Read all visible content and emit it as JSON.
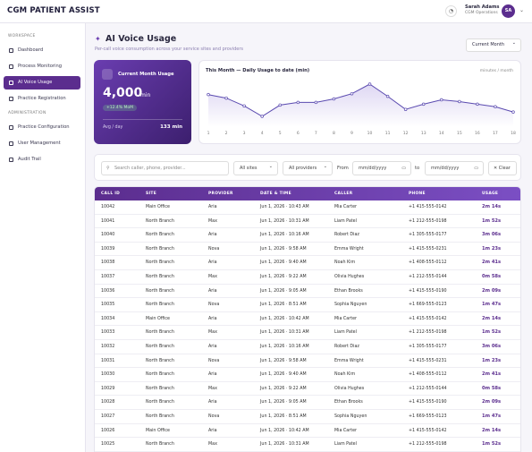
{
  "header": {
    "brand": "CGM PATIENT ASSIST",
    "user_name": "Sarah Adams",
    "user_role": "CGM Operations",
    "avatar": "SA"
  },
  "sidebar": {
    "sections": [
      {
        "title": "WORKSPACE",
        "items": [
          "Dashboard",
          "Process Monitoring",
          "AI Voice Usage",
          "Practice Registration"
        ]
      },
      {
        "title": "ADMINISTRATION",
        "items": [
          "Practice Configuration",
          "User Management",
          "Audit Trail"
        ]
      }
    ]
  },
  "page": {
    "title": "AI Voice Usage",
    "subtitle": "Per-call voice consumption across your service sites and providers",
    "period": "Current Month"
  },
  "summary": {
    "title": "Current Month Usage",
    "value": "4,000",
    "unit": "min",
    "change": "+12.4% MoM",
    "avg_label": "Avg / day",
    "avg_value": "133 min"
  },
  "chart_data": {
    "type": "line",
    "title": "This Month — Daily Usage to date (min)",
    "subtitle": "minutes / month",
    "color": "#5b4bb0",
    "x": [
      1,
      2,
      3,
      4,
      5,
      6,
      7,
      8,
      9,
      10,
      11,
      12,
      13,
      14,
      15,
      16,
      17,
      18
    ],
    "values": [
      140,
      136,
      127,
      115,
      128,
      131,
      131,
      135,
      141,
      152,
      138,
      123,
      129,
      134,
      132,
      129,
      126,
      120
    ]
  },
  "filters": {
    "search": "Search caller, phone, provider...",
    "sites": "All sites",
    "providers": "All providers",
    "from_label": "From",
    "from_placeholder": "mm/dd/yyyy",
    "to_label": "to",
    "to_placeholder": "mm/dd/yyyy",
    "clear": "Clear"
  },
  "table": {
    "columns": [
      "CALL ID",
      "SITE",
      "PROVIDER",
      "DATE & TIME",
      "CALLER",
      "PHONE",
      "USAGE"
    ],
    "rows": [
      [
        "10042",
        "Main Office",
        "Aria",
        "Jun 1, 2026 · 10:43 AM",
        "Mia Carter",
        "+1 415-555-0142",
        "2m 14s"
      ],
      [
        "10041",
        "North Branch",
        "Max",
        "Jun 1, 2026 · 10:31 AM",
        "Liam Patel",
        "+1 212-555-0198",
        "1m 52s"
      ],
      [
        "10040",
        "North Branch",
        "Aria",
        "Jun 1, 2026 · 10:16 AM",
        "Robert Diaz",
        "+1 305-555-0177",
        "3m 06s"
      ],
      [
        "10039",
        "North Branch",
        "Nova",
        "Jun 1, 2026 · 9:58 AM",
        "Emma Wright",
        "+1 415-555-0231",
        "1m 23s"
      ],
      [
        "10038",
        "North Branch",
        "Aria",
        "Jun 1, 2026 · 9:40 AM",
        "Noah Kim",
        "+1 408-555-0112",
        "2m 41s"
      ],
      [
        "10037",
        "North Branch",
        "Max",
        "Jun 1, 2026 · 9:22 AM",
        "Olivia Hughes",
        "+1 212-555-0144",
        "0m 58s"
      ],
      [
        "10036",
        "North Branch",
        "Aria",
        "Jun 1, 2026 · 9:05 AM",
        "Ethan Brooks",
        "+1 415-555-0190",
        "2m 09s"
      ],
      [
        "10035",
        "North Branch",
        "Nova",
        "Jun 1, 2026 · 8:51 AM",
        "Sophia Nguyen",
        "+1 669-555-0123",
        "1m 47s"
      ],
      [
        "10034",
        "Main Office",
        "Aria",
        "Jun 1, 2026 · 10:42 AM",
        "Mia Carter",
        "+1 415-555-0142",
        "2m 14s"
      ],
      [
        "10033",
        "North Branch",
        "Max",
        "Jun 1, 2026 · 10:31 AM",
        "Liam Patel",
        "+1 212-555-0198",
        "1m 52s"
      ],
      [
        "10032",
        "North Branch",
        "Aria",
        "Jun 1, 2026 · 10:16 AM",
        "Robert Diaz",
        "+1 305-555-0177",
        "3m 06s"
      ],
      [
        "10031",
        "North Branch",
        "Nova",
        "Jun 1, 2026 · 9:58 AM",
        "Emma Wright",
        "+1 415-555-0231",
        "1m 23s"
      ],
      [
        "10030",
        "North Branch",
        "Aria",
        "Jun 1, 2026 · 9:40 AM",
        "Noah Kim",
        "+1 408-555-0112",
        "2m 41s"
      ],
      [
        "10029",
        "North Branch",
        "Max",
        "Jun 1, 2026 · 9:22 AM",
        "Olivia Hughes",
        "+1 212-555-0144",
        "0m 58s"
      ],
      [
        "10028",
        "North Branch",
        "Aria",
        "Jun 1, 2026 · 9:05 AM",
        "Ethan Brooks",
        "+1 415-555-0190",
        "2m 09s"
      ],
      [
        "10027",
        "North Branch",
        "Nova",
        "Jun 1, 2026 · 8:51 AM",
        "Sophia Nguyen",
        "+1 669-555-0123",
        "1m 47s"
      ],
      [
        "10026",
        "Main Office",
        "Aria",
        "Jun 1, 2026 · 10:42 AM",
        "Mia Carter",
        "+1 415-555-0142",
        "2m 14s"
      ],
      [
        "10025",
        "North Branch",
        "Max",
        "Jun 1, 2026 · 10:31 AM",
        "Liam Patel",
        "+1 212-555-0198",
        "1m 52s"
      ]
    ]
  }
}
